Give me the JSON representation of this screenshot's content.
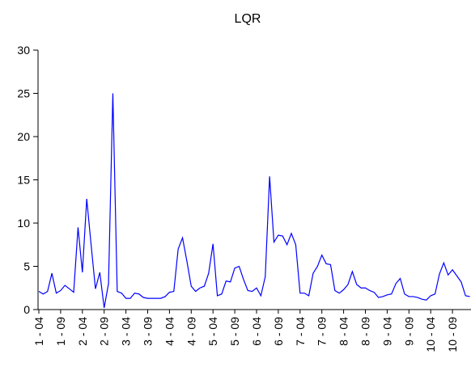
{
  "chart_data": {
    "type": "line",
    "title": "LQR",
    "categories": [
      "1 - 04",
      null,
      null,
      null,
      null,
      "1 - 09",
      null,
      null,
      null,
      null,
      "2 - 04",
      null,
      null,
      null,
      null,
      "2 - 09",
      null,
      null,
      null,
      null,
      "3 - 04",
      null,
      null,
      null,
      null,
      "3 - 09",
      null,
      null,
      null,
      null,
      "4 - 04",
      null,
      null,
      null,
      null,
      "4 - 09",
      null,
      null,
      null,
      null,
      "5 - 04",
      null,
      null,
      null,
      null,
      "5 - 09",
      null,
      null,
      null,
      null,
      "6 - 04",
      null,
      null,
      null,
      null,
      "6 - 09",
      null,
      null,
      null,
      null,
      "7 - 04",
      null,
      null,
      null,
      null,
      "7 - 09",
      null,
      null,
      null,
      null,
      "8 - 04",
      null,
      null,
      null,
      null,
      "8 - 09",
      null,
      null,
      null,
      null,
      "9 - 04",
      null,
      null,
      null,
      null,
      "9 - 09",
      null,
      null,
      null,
      null,
      "10 - 04",
      null,
      null,
      null,
      null,
      "10 - 09",
      null,
      null,
      null,
      null
    ],
    "values": [
      2.1,
      1.8,
      2.1,
      4.2,
      1.9,
      2.2,
      2.8,
      2.4,
      2.0,
      9.5,
      4.3,
      12.8,
      7.5,
      2.4,
      4.3,
      0.2,
      3.0,
      25.0,
      2.1,
      1.9,
      1.3,
      1.3,
      1.9,
      1.8,
      1.4,
      1.3,
      1.3,
      1.3,
      1.3,
      1.5,
      2.0,
      2.1,
      7.0,
      8.3,
      5.6,
      2.7,
      2.1,
      2.5,
      2.7,
      4.2,
      7.6,
      1.6,
      1.8,
      3.3,
      3.2,
      4.8,
      5.0,
      3.5,
      2.2,
      2.1,
      2.5,
      1.6,
      3.8,
      15.4,
      7.8,
      8.6,
      8.5,
      7.5,
      8.8,
      7.5,
      1.9,
      1.9,
      1.6,
      4.2,
      5.0,
      6.3,
      5.3,
      5.2,
      2.2,
      1.9,
      2.3,
      2.9,
      4.4,
      2.9,
      2.5,
      2.5,
      2.2,
      2.0,
      1.4,
      1.5,
      1.7,
      1.8,
      3.0,
      3.6,
      1.8,
      1.5,
      1.5,
      1.4,
      1.2,
      1.1,
      1.6,
      1.8,
      4.1,
      5.4,
      4.0,
      4.6,
      3.9,
      3.2,
      1.6,
      1.5
    ],
    "color": "#0000ff",
    "ylim": [
      0,
      30
    ],
    "yticks": [
      0,
      5,
      10,
      15,
      20,
      25,
      30
    ]
  }
}
